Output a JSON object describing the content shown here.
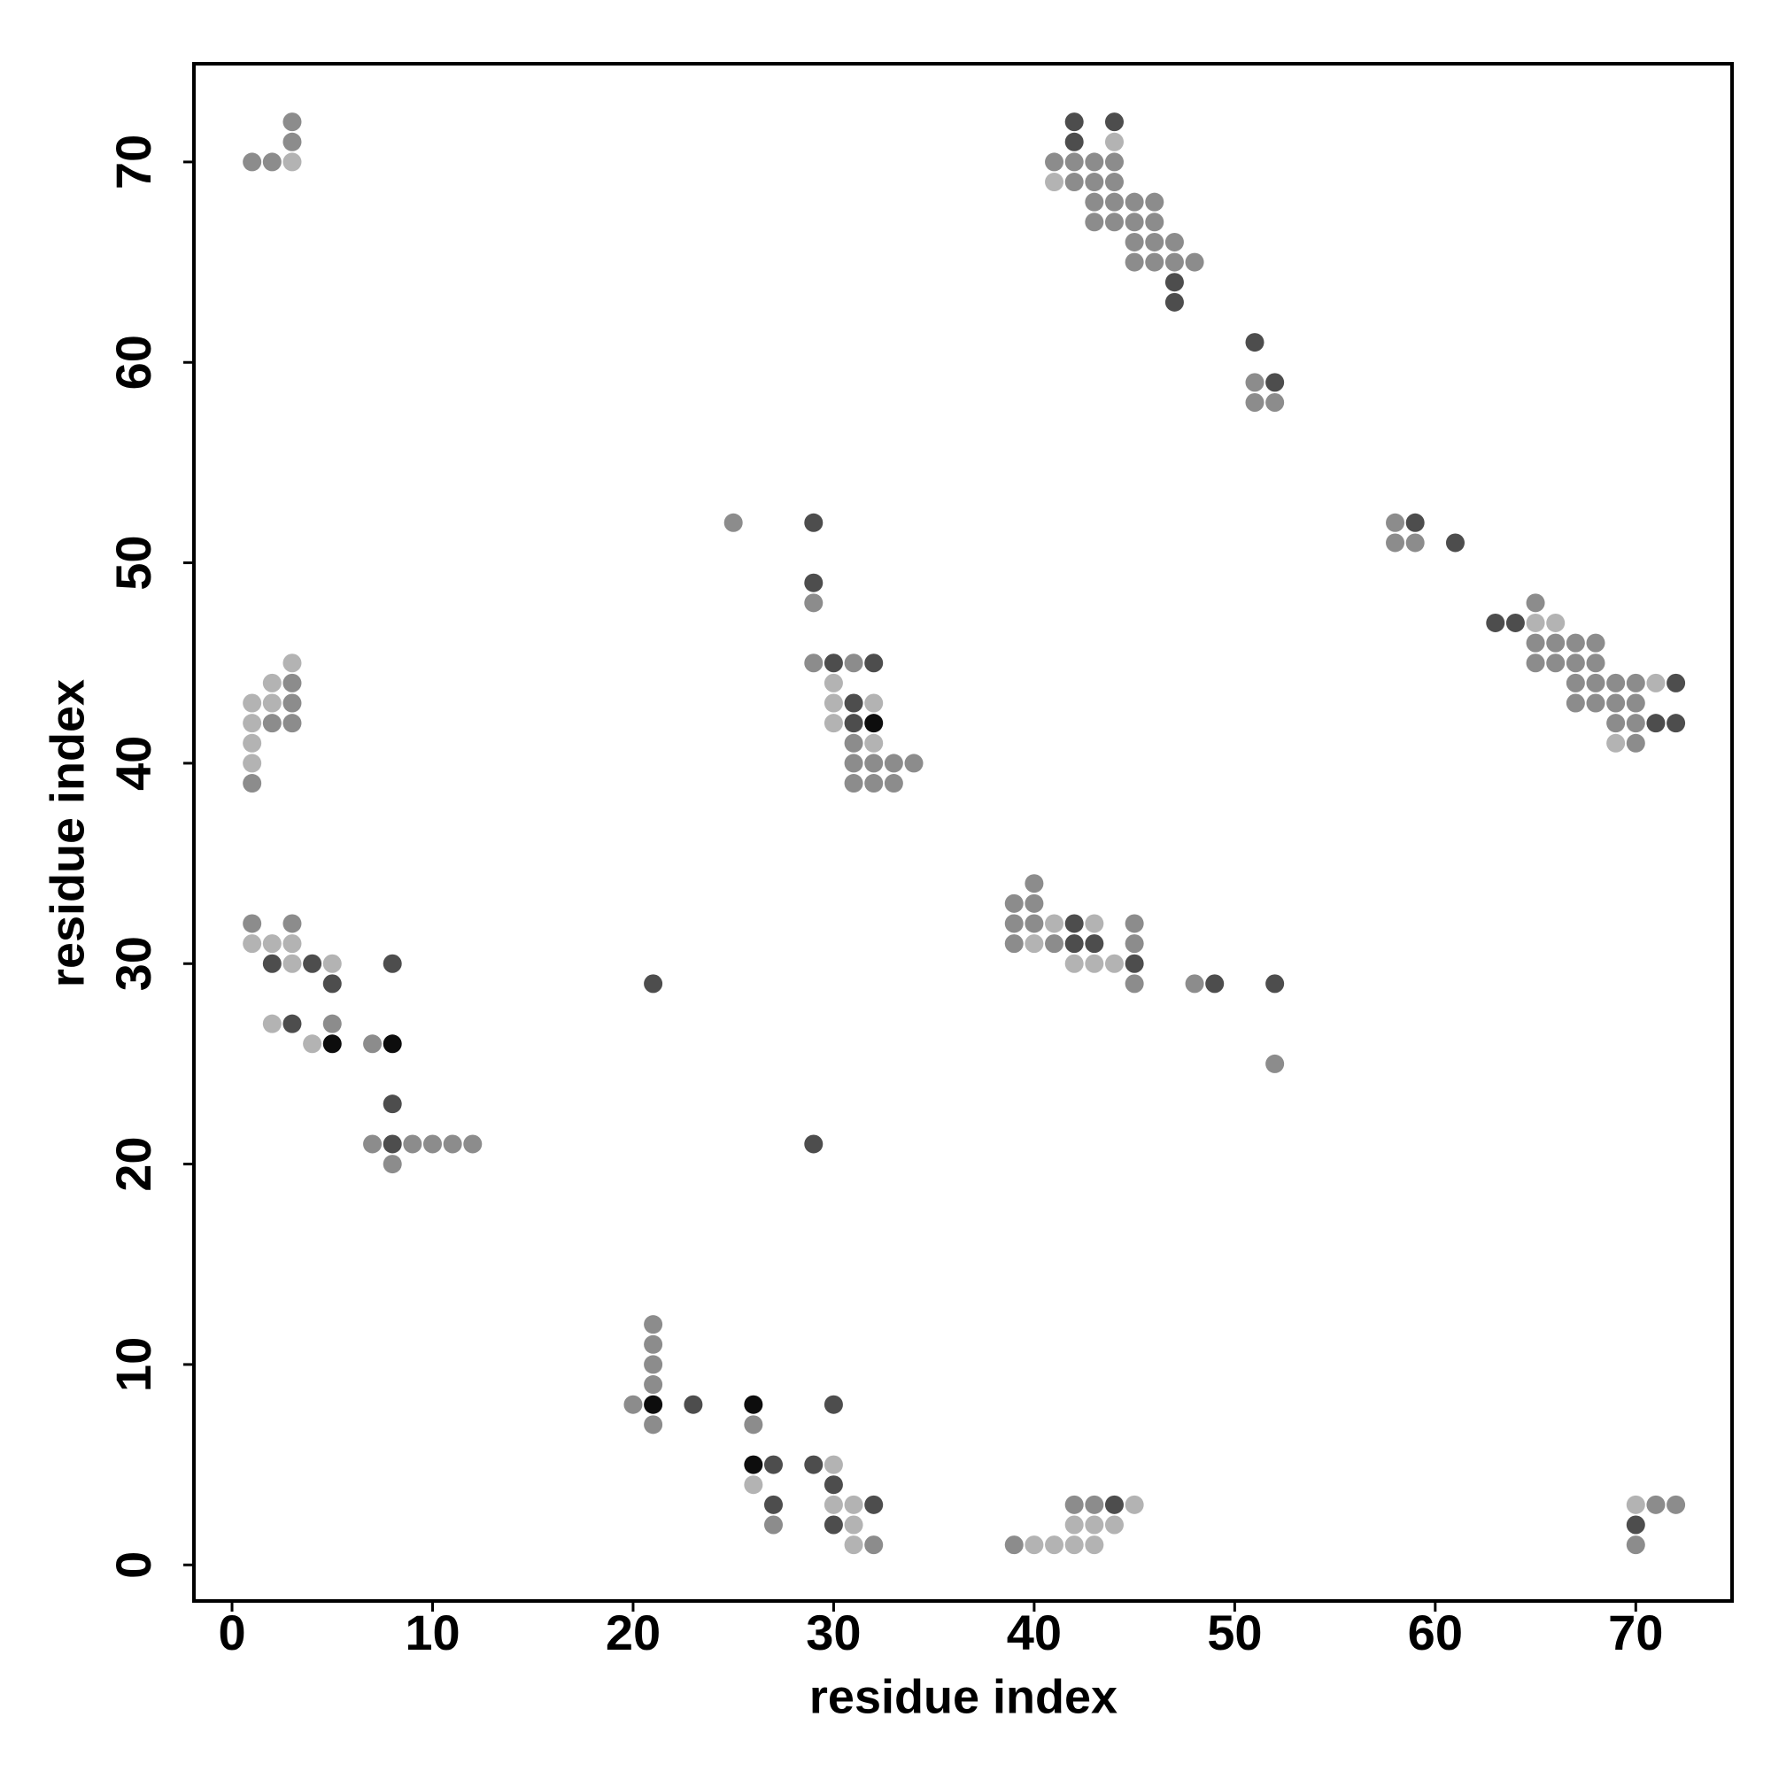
{
  "chart_data": {
    "type": "scatter",
    "xlabel": "residue index",
    "ylabel": "residue index",
    "xlim": [
      -1.9,
      74.8
    ],
    "ylim": [
      -1.8,
      74.9
    ],
    "xticks": [
      0,
      10,
      20,
      30,
      40,
      50,
      60,
      70
    ],
    "yticks": [
      0,
      10,
      20,
      30,
      40,
      50,
      60,
      70
    ],
    "x": [
      1,
      2,
      3,
      3,
      3,
      1,
      1,
      1,
      1,
      1,
      2,
      2,
      2,
      3,
      3,
      3,
      3,
      1,
      1,
      2,
      2,
      3,
      3,
      3,
      4,
      5,
      5,
      2,
      3,
      4,
      5,
      5,
      7,
      8,
      8,
      8,
      7,
      8,
      8,
      9,
      10,
      11,
      12,
      21,
      29,
      20,
      21,
      21,
      21,
      21,
      21,
      21,
      23,
      26,
      26,
      26,
      27,
      26,
      27,
      27,
      29,
      30,
      30,
      30,
      30,
      30,
      31,
      31,
      32,
      31,
      32,
      39,
      40,
      41,
      42,
      43,
      42,
      43,
      44,
      42,
      43,
      44,
      45,
      70,
      70,
      70,
      71,
      72,
      39,
      40,
      40,
      39,
      40,
      41,
      42,
      43,
      39,
      40,
      41,
      42,
      43,
      42,
      43,
      44,
      45,
      45,
      45,
      45,
      48,
      49,
      52,
      52,
      25,
      29,
      29,
      29,
      29,
      30,
      31,
      32,
      30,
      30,
      31,
      32,
      30,
      31,
      32,
      31,
      32,
      31,
      32,
      33,
      34,
      31,
      32,
      33,
      42,
      44,
      42,
      44,
      41,
      42,
      43,
      44,
      41,
      42,
      43,
      44,
      43,
      44,
      45,
      46,
      43,
      44,
      45,
      46,
      45,
      46,
      47,
      45,
      46,
      47,
      48,
      47,
      47,
      51,
      51,
      52,
      51,
      52,
      58,
      59,
      58,
      59,
      61,
      63,
      64,
      65,
      65,
      66,
      65,
      66,
      67,
      68,
      65,
      66,
      67,
      68,
      67,
      68,
      69,
      70,
      71,
      72,
      67,
      68,
      69,
      70,
      69,
      70,
      71,
      72,
      69,
      70
    ],
    "y": [
      70,
      70,
      70,
      71,
      72,
      39,
      40,
      41,
      42,
      43,
      42,
      43,
      44,
      42,
      43,
      44,
      45,
      32,
      31,
      31,
      30,
      32,
      31,
      30,
      30,
      30,
      29,
      27,
      27,
      26,
      27,
      26,
      26,
      26,
      30,
      23,
      21,
      21,
      20,
      21,
      21,
      21,
      21,
      29,
      21,
      8,
      8,
      7,
      9,
      10,
      11,
      12,
      8,
      8,
      7,
      5,
      5,
      4,
      3,
      2,
      5,
      5,
      8,
      4,
      3,
      2,
      3,
      2,
      3,
      1,
      1,
      1,
      1,
      1,
      1,
      1,
      2,
      2,
      2,
      3,
      3,
      3,
      3,
      1,
      2,
      3,
      3,
      3,
      33,
      34,
      33,
      32,
      32,
      32,
      32,
      32,
      31,
      31,
      31,
      31,
      31,
      30,
      30,
      30,
      30,
      32,
      31,
      29,
      29,
      29,
      29,
      25,
      52,
      52,
      49,
      48,
      45,
      45,
      45,
      45,
      44,
      43,
      43,
      43,
      42,
      42,
      42,
      41,
      41,
      40,
      40,
      40,
      40,
      39,
      39,
      39,
      72,
      72,
      71,
      71,
      70,
      70,
      70,
      70,
      69,
      69,
      69,
      69,
      68,
      68,
      68,
      68,
      67,
      67,
      67,
      67,
      66,
      66,
      66,
      65,
      65,
      65,
      65,
      64,
      63,
      61,
      59,
      59,
      58,
      58,
      52,
      52,
      51,
      51,
      51,
      47,
      47,
      48,
      47,
      47,
      46,
      46,
      46,
      46,
      45,
      45,
      45,
      45,
      44,
      44,
      44,
      44,
      44,
      44,
      43,
      43,
      43,
      43,
      42,
      42,
      42,
      42,
      41,
      41
    ],
    "colors": [
      "#8c8c8c",
      "#8c8c8c",
      "#b3b3b3",
      "#8c8c8c",
      "#8c8c8c",
      "#8c8c8c",
      "#b3b3b3",
      "#b3b3b3",
      "#b3b3b3",
      "#b3b3b3",
      "#8c8c8c",
      "#b3b3b3",
      "#b3b3b3",
      "#8c8c8c",
      "#8c8c8c",
      "#8c8c8c",
      "#b3b3b3",
      "#8c8c8c",
      "#b3b3b3",
      "#b3b3b3",
      "#4d4d4d",
      "#8c8c8c",
      "#b3b3b3",
      "#b3b3b3",
      "#4d4d4d",
      "#b3b3b3",
      "#4d4d4d",
      "#b3b3b3",
      "#4d4d4d",
      "#b3b3b3",
      "#8c8c8c",
      "#0d0d0d",
      "#8c8c8c",
      "#0d0d0d",
      "#4d4d4d",
      "#4d4d4d",
      "#8c8c8c",
      "#4d4d4d",
      "#8c8c8c",
      "#8c8c8c",
      "#8c8c8c",
      "#8c8c8c",
      "#8c8c8c",
      "#4d4d4d",
      "#4d4d4d",
      "#8c8c8c",
      "#0d0d0d",
      "#8c8c8c",
      "#8c8c8c",
      "#8c8c8c",
      "#8c8c8c",
      "#8c8c8c",
      "#4d4d4d",
      "#0d0d0d",
      "#8c8c8c",
      "#0d0d0d",
      "#4d4d4d",
      "#b3b3b3",
      "#4d4d4d",
      "#8c8c8c",
      "#4d4d4d",
      "#b3b3b3",
      "#4d4d4d",
      "#4d4d4d",
      "#b3b3b3",
      "#4d4d4d",
      "#b3b3b3",
      "#b3b3b3",
      "#4d4d4d",
      "#b3b3b3",
      "#8c8c8c",
      "#8c8c8c",
      "#b3b3b3",
      "#b3b3b3",
      "#b3b3b3",
      "#b3b3b3",
      "#b3b3b3",
      "#b3b3b3",
      "#b3b3b3",
      "#8c8c8c",
      "#8c8c8c",
      "#4d4d4d",
      "#b3b3b3",
      "#8c8c8c",
      "#4d4d4d",
      "#b3b3b3",
      "#8c8c8c",
      "#8c8c8c",
      "#8c8c8c",
      "#8c8c8c",
      "#8c8c8c",
      "#8c8c8c",
      "#8c8c8c",
      "#b3b3b3",
      "#4d4d4d",
      "#b3b3b3",
      "#8c8c8c",
      "#b3b3b3",
      "#8c8c8c",
      "#4d4d4d",
      "#4d4d4d",
      "#b3b3b3",
      "#b3b3b3",
      "#b3b3b3",
      "#4d4d4d",
      "#8c8c8c",
      "#8c8c8c",
      "#8c8c8c",
      "#8c8c8c",
      "#4d4d4d",
      "#4d4d4d",
      "#8c8c8c",
      "#8c8c8c",
      "#4d4d4d",
      "#4d4d4d",
      "#8c8c8c",
      "#8c8c8c",
      "#4d4d4d",
      "#8c8c8c",
      "#4d4d4d",
      "#b3b3b3",
      "#b3b3b3",
      "#4d4d4d",
      "#b3b3b3",
      "#b3b3b3",
      "#4d4d4d",
      "#0d0d0d",
      "#8c8c8c",
      "#b3b3b3",
      "#8c8c8c",
      "#8c8c8c",
      "#8c8c8c",
      "#8c8c8c",
      "#8c8c8c",
      "#8c8c8c",
      "#8c8c8c",
      "#4d4d4d",
      "#4d4d4d",
      "#4d4d4d",
      "#b3b3b3",
      "#8c8c8c",
      "#8c8c8c",
      "#8c8c8c",
      "#8c8c8c",
      "#b3b3b3",
      "#8c8c8c",
      "#8c8c8c",
      "#8c8c8c",
      "#8c8c8c",
      "#8c8c8c",
      "#8c8c8c",
      "#8c8c8c",
      "#8c8c8c",
      "#8c8c8c",
      "#8c8c8c",
      "#8c8c8c",
      "#8c8c8c",
      "#8c8c8c",
      "#8c8c8c",
      "#8c8c8c",
      "#8c8c8c",
      "#8c8c8c",
      "#8c8c8c",
      "#4d4d4d",
      "#4d4d4d",
      "#4d4d4d",
      "#8c8c8c",
      "#4d4d4d",
      "#8c8c8c",
      "#8c8c8c",
      "#8c8c8c",
      "#4d4d4d",
      "#8c8c8c",
      "#8c8c8c",
      "#4d4d4d",
      "#4d4d4d",
      "#4d4d4d",
      "#8c8c8c",
      "#b3b3b3",
      "#b3b3b3",
      "#8c8c8c",
      "#8c8c8c",
      "#8c8c8c",
      "#8c8c8c",
      "#8c8c8c",
      "#8c8c8c",
      "#8c8c8c",
      "#8c8c8c",
      "#8c8c8c",
      "#8c8c8c",
      "#8c8c8c",
      "#8c8c8c",
      "#b3b3b3",
      "#4d4d4d",
      "#8c8c8c",
      "#8c8c8c",
      "#8c8c8c",
      "#8c8c8c",
      "#8c8c8c",
      "#8c8c8c",
      "#4d4d4d",
      "#4d4d4d",
      "#b3b3b3",
      "#8c8c8c"
    ]
  }
}
